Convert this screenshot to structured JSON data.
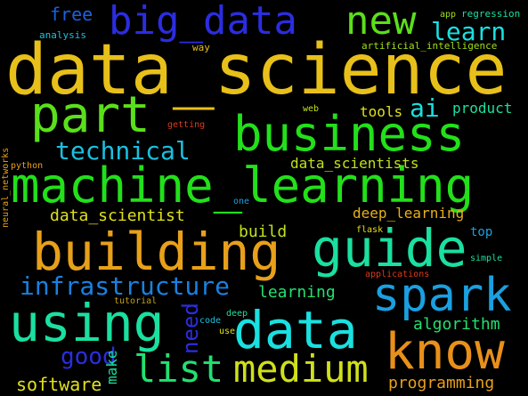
{
  "words": [
    {
      "id": "data_science",
      "text": "data_science",
      "color": "#e8c01a"
    },
    {
      "id": "machine_learning",
      "text": "machine_learning",
      "color": "#22e01a"
    },
    {
      "id": "big_data",
      "text": "big_data",
      "color": "#2b2de0"
    },
    {
      "id": "new",
      "text": "new",
      "color": "#5ae01a"
    },
    {
      "id": "part",
      "text": "part",
      "color": "#5ae01a"
    },
    {
      "id": "business",
      "text": "business",
      "color": "#22e01a"
    },
    {
      "id": "building",
      "text": "building",
      "color": "#e8a01a"
    },
    {
      "id": "guide",
      "text": "guide",
      "color": "#1ae0a0"
    },
    {
      "id": "spark",
      "text": "spark",
      "color": "#1aa0e0"
    },
    {
      "id": "using",
      "text": "using",
      "color": "#1ae0a0"
    },
    {
      "id": "data",
      "text": "data",
      "color": "#1ae0e0"
    },
    {
      "id": "know",
      "text": "know",
      "color": "#e8901a"
    },
    {
      "id": "list",
      "text": "list",
      "color": "#22e070"
    },
    {
      "id": "medium",
      "text": "medium",
      "color": "#d0e01a"
    },
    {
      "id": "infrastructure",
      "text": "infrastructure",
      "color": "#1a80e0"
    },
    {
      "id": "technical",
      "text": "technical",
      "color": "#1ac0e0"
    },
    {
      "id": "learn",
      "text": "learn",
      "color": "#1ae0e0"
    },
    {
      "id": "ai",
      "text": "ai",
      "color": "#1ae0e0"
    },
    {
      "id": "free",
      "text": "free",
      "color": "#1a60e0"
    },
    {
      "id": "tools",
      "text": "tools",
      "color": "#e0e01a"
    },
    {
      "id": "product",
      "text": "product",
      "color": "#1ae0a0"
    },
    {
      "id": "data_scientists",
      "text": "data_scientists",
      "color": "#c0e01a"
    },
    {
      "id": "data_scientist",
      "text": "data_scientist",
      "color": "#e0e01a"
    },
    {
      "id": "build",
      "text": "build",
      "color": "#c0e01a"
    },
    {
      "id": "deep_learning",
      "text": "deep_learning",
      "color": "#e8b01a"
    },
    {
      "id": "top",
      "text": "top",
      "color": "#1aa0e0"
    },
    {
      "id": "learning",
      "text": "learning",
      "color": "#22e070"
    },
    {
      "id": "need",
      "text": "need",
      "color": "#2b2de0"
    },
    {
      "id": "algorithm",
      "text": "algorithm",
      "color": "#22e070"
    },
    {
      "id": "good",
      "text": "good",
      "color": "#2b2de0"
    },
    {
      "id": "software",
      "text": "software",
      "color": "#e0e01a"
    },
    {
      "id": "make",
      "text": "make",
      "color": "#1ae0a0"
    },
    {
      "id": "programming",
      "text": "programming",
      "color": "#e8a01a"
    },
    {
      "id": "analysis",
      "text": "analysis",
      "color": "#1ac0e0"
    },
    {
      "id": "app",
      "text": "app",
      "color": "#a0e01a"
    },
    {
      "id": "regression",
      "text": "regression",
      "color": "#1ae0a0"
    },
    {
      "id": "artificial_intelligence",
      "text": "artificial_intelligence",
      "color": "#a0e01a"
    },
    {
      "id": "way",
      "text": "way",
      "color": "#e8c01a"
    },
    {
      "id": "web",
      "text": "web",
      "color": "#c0e01a"
    },
    {
      "id": "getting",
      "text": "getting",
      "color": "#e03a1a"
    },
    {
      "id": "neural_networks",
      "text": "neural_networks",
      "color": "#e8a01a"
    },
    {
      "id": "python",
      "text": "python",
      "color": "#e8a01a"
    },
    {
      "id": "one",
      "text": "one",
      "color": "#1aa0e0"
    },
    {
      "id": "flask",
      "text": "flask",
      "color": "#e0e01a"
    },
    {
      "id": "simple",
      "text": "simple",
      "color": "#1ae0a0"
    },
    {
      "id": "applications",
      "text": "applications",
      "color": "#e03a1a"
    },
    {
      "id": "tutorial",
      "text": "tutorial",
      "color": "#c0a01a"
    },
    {
      "id": "code",
      "text": "code",
      "color": "#1ac0e0"
    },
    {
      "id": "deep",
      "text": "deep",
      "color": "#1ae0a0"
    },
    {
      "id": "use",
      "text": "use",
      "color": "#e0e01a"
    }
  ]
}
